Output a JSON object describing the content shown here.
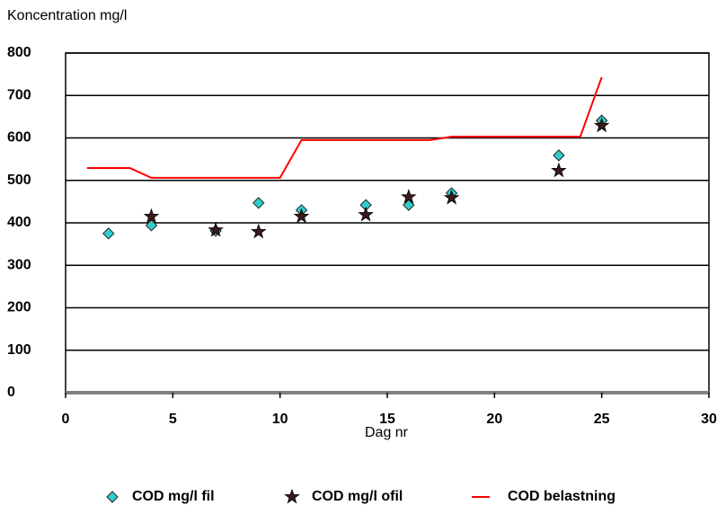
{
  "chart_data": {
    "type": "scatter",
    "y_label": "Koncentration mg/l",
    "x_label": "Dag nr",
    "xlim": [
      0,
      30
    ],
    "xticks": [
      0,
      5,
      10,
      15,
      20,
      25,
      30
    ],
    "ylim": [
      0,
      800
    ],
    "yticks": [
      0,
      100,
      200,
      300,
      400,
      500,
      600,
      700,
      800
    ],
    "grid": true,
    "legend": "bottom",
    "series": [
      {
        "name": "COD mg/l fil",
        "color": "#33cccc",
        "marker": "diamond",
        "x": [
          2,
          4,
          7,
          9,
          11,
          14,
          16,
          18,
          23,
          25
        ],
        "values": [
          375,
          394,
          381,
          447,
          430,
          442,
          442,
          470,
          559,
          641
        ]
      },
      {
        "name": "COD mg/l ofil",
        "color": "#3a1a1a",
        "marker": "star",
        "x": [
          4,
          7,
          9,
          11,
          14,
          16,
          18,
          23,
          25
        ],
        "values": [
          415,
          383,
          379,
          415,
          419,
          461,
          459,
          523,
          629
        ]
      },
      {
        "name": "COD belastning",
        "color": "#ff0000",
        "marker": "line",
        "x": [
          1,
          3,
          4,
          10,
          11,
          17,
          18,
          24,
          25
        ],
        "values": [
          529,
          529,
          506,
          506,
          595,
          595,
          603,
          603,
          743
        ]
      }
    ]
  }
}
